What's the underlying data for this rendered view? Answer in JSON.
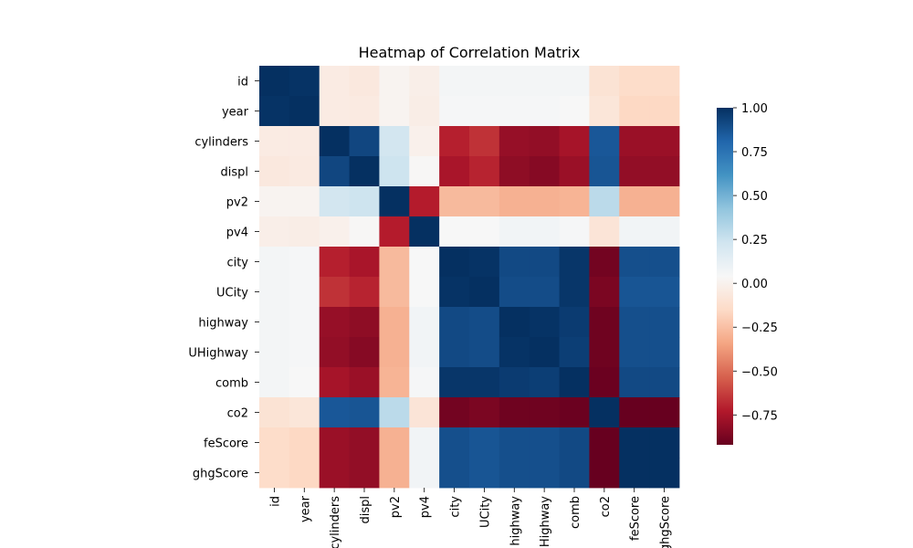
{
  "chart_data": {
    "type": "heatmap",
    "title": "Heatmap of Correlation Matrix",
    "xlabel": "",
    "ylabel": "",
    "rows": [
      "id",
      "year",
      "cylinders",
      "displ",
      "pv2",
      "pv4",
      "city",
      "UCity",
      "highway",
      "UHighway",
      "comb",
      "co2",
      "feScore",
      "ghgScore"
    ],
    "cols": [
      "id",
      "year",
      "cylinders",
      "displ",
      "pv2",
      "pv4",
      "city",
      "UCity",
      "highway",
      "UHighway",
      "comb",
      "co2",
      "feScore",
      "ghgScore"
    ],
    "values": [
      [
        1.0,
        0.99,
        -0.04,
        -0.06,
        0.01,
        -0.02,
        0.06,
        0.06,
        0.06,
        0.06,
        0.06,
        -0.1,
        -0.14,
        -0.14
      ],
      [
        0.99,
        1.0,
        -0.04,
        -0.05,
        0.01,
        -0.03,
        0.05,
        0.05,
        0.05,
        0.05,
        0.04,
        -0.08,
        -0.16,
        -0.16
      ],
      [
        -0.04,
        -0.04,
        1.0,
        0.92,
        0.22,
        -0.01,
        -0.71,
        -0.66,
        -0.8,
        -0.81,
        -0.76,
        0.86,
        -0.79,
        -0.79
      ],
      [
        -0.06,
        -0.05,
        0.92,
        1.0,
        0.24,
        0.03,
        -0.75,
        -0.7,
        -0.82,
        -0.84,
        -0.79,
        0.87,
        -0.81,
        -0.81
      ],
      [
        0.01,
        0.01,
        0.22,
        0.24,
        1.0,
        -0.72,
        -0.27,
        -0.27,
        -0.3,
        -0.3,
        -0.29,
        0.3,
        -0.3,
        -0.3
      ],
      [
        -0.02,
        -0.03,
        -0.01,
        0.03,
        -0.72,
        1.0,
        0.04,
        0.04,
        0.07,
        0.07,
        0.05,
        -0.09,
        0.07,
        0.07
      ],
      [
        0.06,
        0.05,
        -0.71,
        -0.75,
        -0.27,
        0.04,
        1.0,
        0.99,
        0.91,
        0.91,
        0.98,
        -0.89,
        0.89,
        0.89
      ],
      [
        0.06,
        0.05,
        -0.66,
        -0.7,
        -0.27,
        0.04,
        0.99,
        1.0,
        0.9,
        0.9,
        0.98,
        -0.87,
        0.87,
        0.87
      ],
      [
        0.06,
        0.05,
        -0.8,
        -0.82,
        -0.3,
        0.07,
        0.91,
        0.9,
        1.0,
        0.99,
        0.96,
        -0.9,
        0.89,
        0.89
      ],
      [
        0.06,
        0.05,
        -0.81,
        -0.84,
        -0.3,
        0.07,
        0.91,
        0.9,
        0.99,
        1.0,
        0.95,
        -0.9,
        0.89,
        0.89
      ],
      [
        0.06,
        0.04,
        -0.76,
        -0.79,
        -0.29,
        0.05,
        0.98,
        0.98,
        0.96,
        0.95,
        1.0,
        -0.91,
        0.91,
        0.91
      ],
      [
        -0.1,
        -0.08,
        0.86,
        0.87,
        0.3,
        -0.09,
        -0.89,
        -0.87,
        -0.9,
        -0.9,
        -0.91,
        1.0,
        -0.92,
        -0.92
      ],
      [
        -0.14,
        -0.16,
        -0.79,
        -0.81,
        -0.3,
        0.07,
        0.89,
        0.87,
        0.89,
        0.89,
        0.91,
        -0.92,
        1.0,
        1.0
      ],
      [
        -0.14,
        -0.16,
        -0.79,
        -0.81,
        -0.3,
        0.07,
        0.89,
        0.87,
        0.89,
        0.89,
        0.91,
        -0.92,
        1.0,
        1.0
      ]
    ],
    "colorbar": {
      "colormap": "RdBu",
      "range": [
        -0.92,
        1.0
      ],
      "ticks": [
        1.0,
        0.75,
        0.5,
        0.25,
        0.0,
        -0.25,
        -0.5,
        -0.75
      ],
      "tick_labels": [
        "1.00",
        "0.75",
        "0.50",
        "0.25",
        "0.00",
        "−0.25",
        "−0.50",
        "−0.75"
      ]
    }
  }
}
